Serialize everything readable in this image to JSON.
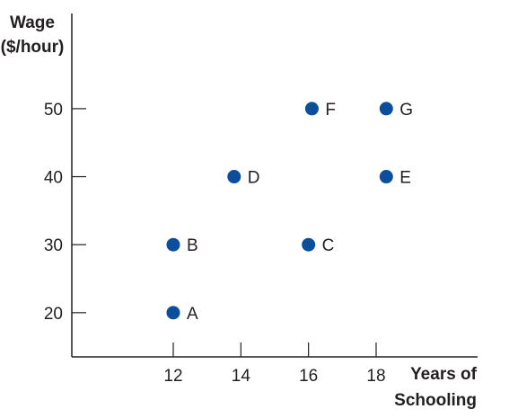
{
  "chart_data": {
    "type": "scatter",
    "ylabel_lines": [
      "Wage",
      "($/hour)"
    ],
    "xlabel_lines": [
      "Years of",
      "Schooling"
    ],
    "xlim": [
      9.0,
      21.0
    ],
    "ylim": [
      13.5,
      64.0
    ],
    "xticks": [
      12,
      14,
      16,
      18
    ],
    "yticks": [
      20,
      30,
      40,
      50
    ],
    "series": [
      {
        "points": [
          {
            "label": "A",
            "x": 12.0,
            "y": 20
          },
          {
            "label": "B",
            "x": 12.0,
            "y": 30
          },
          {
            "label": "C",
            "x": 16.0,
            "y": 30
          },
          {
            "label": "D",
            "x": 13.8,
            "y": 40
          },
          {
            "label": "E",
            "x": 18.3,
            "y": 40
          },
          {
            "label": "F",
            "x": 16.1,
            "y": 50
          },
          {
            "label": "G",
            "x": 18.3,
            "y": 50
          }
        ]
      }
    ],
    "grid": false,
    "colors": {
      "point": "#0b4f9c",
      "axis": "#231f20"
    }
  }
}
